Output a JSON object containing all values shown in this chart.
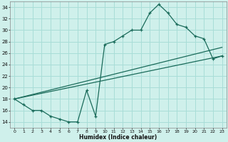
{
  "xlabel": "Humidex (Indice chaleur)",
  "bg_color": "#cff0eb",
  "grid_color": "#a8ddd7",
  "line_color": "#1a6b5a",
  "xlim": [
    -0.5,
    23.5
  ],
  "ylim": [
    13,
    35
  ],
  "yticks": [
    14,
    16,
    18,
    20,
    22,
    24,
    26,
    28,
    30,
    32,
    34
  ],
  "xticks": [
    0,
    1,
    2,
    3,
    4,
    5,
    6,
    7,
    8,
    9,
    10,
    11,
    12,
    13,
    14,
    15,
    16,
    17,
    18,
    19,
    20,
    21,
    22,
    23
  ],
  "line1_x": [
    0,
    1,
    2,
    3,
    4,
    5,
    6,
    7,
    8,
    9,
    10,
    11,
    12,
    13,
    14,
    15,
    16,
    17,
    18,
    19,
    20,
    21,
    22,
    23
  ],
  "line1_y": [
    18,
    17,
    16,
    16,
    15,
    14.5,
    14,
    14,
    19.5,
    15,
    27.5,
    28,
    29,
    30,
    30,
    33,
    34.5,
    33,
    31,
    30.5,
    29,
    28.5,
    25,
    25.5
  ],
  "line2_x": [
    0,
    23
  ],
  "line2_y": [
    18,
    25.5
  ],
  "line3_x": [
    0,
    23
  ],
  "line3_y": [
    18,
    27
  ]
}
